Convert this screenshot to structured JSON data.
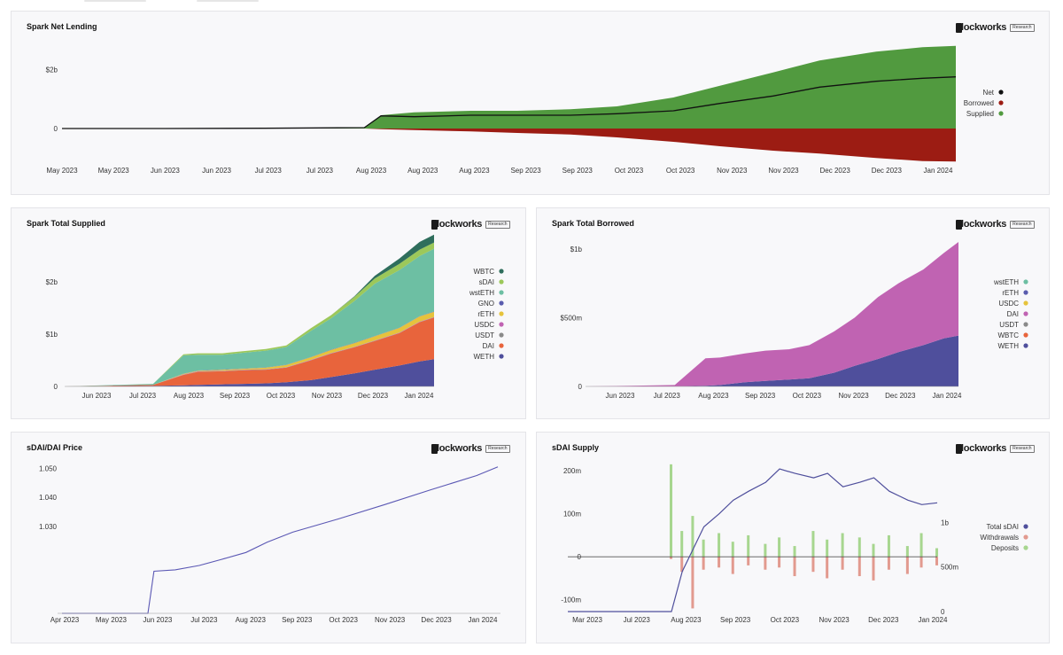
{
  "brand": {
    "logo_label": "lockworks",
    "badge": "Research"
  },
  "colors": {
    "background": "#ffffff",
    "panel": "#f8f8fa",
    "supplied_green": "#519a3f",
    "borrowed_red": "#9c1c13",
    "net_black": "#111111",
    "line_purple": "#5b58b4"
  },
  "charts": {
    "net": {
      "title": "Spark Net Lending",
      "chart_data": {
        "type": "area",
        "x": [
          "2023-05-01",
          "2023-06-01",
          "2023-07-01",
          "2023-07-31",
          "2023-08-05",
          "2023-08-15",
          "2023-09-01",
          "2023-09-15",
          "2023-10-01",
          "2023-10-15",
          "2023-11-01",
          "2023-11-15",
          "2023-12-01",
          "2023-12-15",
          "2024-01-01",
          "2024-01-15",
          "2024-01-25"
        ],
        "series": [
          {
            "name": "Supplied",
            "values": [
              0,
              0,
              0.01,
              0.03,
              0.45,
              0.55,
              0.6,
              0.6,
              0.65,
              0.75,
              1.05,
              1.45,
              1.9,
              2.3,
              2.6,
              2.75,
              2.8
            ]
          },
          {
            "name": "Borrowed",
            "values": [
              0,
              0,
              0,
              0,
              -0.02,
              -0.05,
              -0.1,
              -0.15,
              -0.2,
              -0.3,
              -0.45,
              -0.6,
              -0.75,
              -0.85,
              -1.0,
              -1.1,
              -1.12
            ]
          },
          {
            "name": "Net",
            "values": [
              0,
              0,
              0.01,
              0.03,
              0.43,
              0.4,
              0.45,
              0.45,
              0.45,
              0.5,
              0.6,
              0.85,
              1.1,
              1.4,
              1.6,
              1.7,
              1.75
            ]
          }
        ],
        "ylim": [
          -1.2,
          3
        ],
        "y_ticks": [
          {
            "value": 0,
            "label": "0"
          },
          {
            "value": 2,
            "label": "$2b"
          }
        ],
        "x_tick_labels": [
          "May 2023",
          "May 2023",
          "Jun 2023",
          "Jun 2023",
          "Jul 2023",
          "Jul 2023",
          "Aug 2023",
          "Aug 2023",
          "Aug 2023",
          "Sep 2023",
          "Sep 2023",
          "Oct 2023",
          "Oct 2023",
          "Nov 2023",
          "Nov 2023",
          "Dec 2023",
          "Dec 2023",
          "Jan 2024"
        ],
        "legend": [
          "Net",
          "Borrowed",
          "Supplied"
        ],
        "legend_colors": [
          "#111111",
          "#9c1c13",
          "#519a3f"
        ],
        "legend_position": "right",
        "grid": false
      }
    },
    "supplied": {
      "title": "Spark Total Supplied",
      "chart_data": {
        "type": "area",
        "stacked": true,
        "x": [
          "2023-05-15",
          "2023-06-15",
          "2023-07-15",
          "2023-08-05",
          "2023-08-15",
          "2023-09-01",
          "2023-09-15",
          "2023-10-01",
          "2023-10-15",
          "2023-11-01",
          "2023-11-15",
          "2023-12-01",
          "2023-12-15",
          "2024-01-01",
          "2024-01-15",
          "2024-01-25"
        ],
        "series": [
          {
            "name": "WETH",
            "values": [
              0,
              0.005,
              0.01,
              0.02,
              0.03,
              0.04,
              0.05,
              0.06,
              0.08,
              0.12,
              0.18,
              0.25,
              0.32,
              0.4,
              0.48,
              0.52
            ]
          },
          {
            "name": "DAI",
            "values": [
              0,
              0.01,
              0.02,
              0.2,
              0.25,
              0.25,
              0.26,
              0.26,
              0.28,
              0.38,
              0.45,
              0.5,
              0.55,
              0.62,
              0.75,
              0.8
            ]
          },
          {
            "name": "USDT",
            "values": [
              0,
              0,
              0,
              0.005,
              0.005,
              0.005,
              0.005,
              0.005,
              0.005,
              0.005,
              0.005,
              0.005,
              0.005,
              0.005,
              0.005,
              0.005
            ]
          },
          {
            "name": "USDC",
            "values": [
              0,
              0,
              0,
              0.005,
              0.005,
              0.005,
              0.005,
              0.005,
              0.005,
              0.005,
              0.005,
              0.005,
              0.005,
              0.005,
              0.005,
              0.005
            ]
          },
          {
            "name": "rETH",
            "values": [
              0,
              0,
              0,
              0.01,
              0.01,
              0.02,
              0.02,
              0.03,
              0.04,
              0.05,
              0.06,
              0.07,
              0.08,
              0.09,
              0.1,
              0.1
            ]
          },
          {
            "name": "GNO",
            "values": [
              0,
              0,
              0,
              0.005,
              0.005,
              0.005,
              0.005,
              0.005,
              0.005,
              0.005,
              0.005,
              0.005,
              0.005,
              0.005,
              0.005,
              0.005
            ]
          },
          {
            "name": "wstETH",
            "values": [
              0,
              0.01,
              0.02,
              0.35,
              0.3,
              0.28,
              0.3,
              0.32,
              0.34,
              0.5,
              0.6,
              0.8,
              1.0,
              1.1,
              1.15,
              1.2
            ]
          },
          {
            "name": "sDAI",
            "values": [
              0,
              0,
              0,
              0.02,
              0.03,
              0.03,
              0.03,
              0.03,
              0.03,
              0.05,
              0.06,
              0.08,
              0.1,
              0.12,
              0.12,
              0.12
            ]
          },
          {
            "name": "WBTC",
            "values": [
              0,
              0,
              0,
              0,
              0,
              0,
              0,
              0,
              0,
              0,
              0,
              0.01,
              0.05,
              0.1,
              0.15,
              0.15
            ]
          }
        ],
        "ylim": [
          0,
          2.9
        ],
        "y_ticks": [
          {
            "value": 0,
            "label": "0"
          },
          {
            "value": 1,
            "label": "$1b"
          },
          {
            "value": 2,
            "label": "$2b"
          }
        ],
        "x_tick_labels": [
          "Jun 2023",
          "Jul 2023",
          "Aug 2023",
          "Sep 2023",
          "Oct 2023",
          "Nov 2023",
          "Dec 2023",
          "Jan 2024"
        ],
        "legend": [
          "WBTC",
          "sDAI",
          "wstETH",
          "GNO",
          "rETH",
          "USDC",
          "USDT",
          "DAI",
          "WETH"
        ],
        "legend_colors": [
          "#2f6e5c",
          "#9cc85a",
          "#6dbfa3",
          "#5a5cae",
          "#e6c33c",
          "#c063b2",
          "#8a8a8a",
          "#e8643c",
          "#4f4f9c"
        ],
        "legend_position": "right",
        "grid": false
      }
    },
    "borrowed": {
      "title": "Spark Total Borrowed",
      "chart_data": {
        "type": "area",
        "stacked": true,
        "x": [
          "2023-05-15",
          "2023-06-15",
          "2023-07-15",
          "2023-08-05",
          "2023-08-15",
          "2023-09-01",
          "2023-09-15",
          "2023-10-01",
          "2023-10-15",
          "2023-11-01",
          "2023-11-15",
          "2023-12-01",
          "2023-12-15",
          "2024-01-01",
          "2024-01-15",
          "2024-01-25"
        ],
        "series": [
          {
            "name": "WETH",
            "values": [
              0,
              0,
              0,
              0.005,
              0.01,
              0.03,
              0.04,
              0.05,
              0.06,
              0.1,
              0.15,
              0.2,
              0.25,
              0.3,
              0.35,
              0.37
            ]
          },
          {
            "name": "WBTC",
            "values": [
              0,
              0,
              0,
              0,
              0,
              0,
              0,
              0,
              0,
              0,
              0,
              0,
              0,
              0,
              0,
              0
            ]
          },
          {
            "name": "USDT",
            "values": [
              0,
              0,
              0,
              0,
              0,
              0,
              0,
              0,
              0,
              0,
              0,
              0,
              0,
              0,
              0,
              0
            ]
          },
          {
            "name": "DAI",
            "values": [
              0,
              0.005,
              0.01,
              0.2,
              0.2,
              0.21,
              0.22,
              0.22,
              0.24,
              0.3,
              0.35,
              0.45,
              0.5,
              0.55,
              0.62,
              0.68
            ]
          },
          {
            "name": "USDC",
            "values": [
              0,
              0,
              0,
              0,
              0,
              0,
              0,
              0,
              0,
              0,
              0,
              0,
              0,
              0,
              0,
              0
            ]
          },
          {
            "name": "rETH",
            "values": [
              0,
              0,
              0,
              0,
              0,
              0,
              0,
              0,
              0,
              0,
              0,
              0,
              0,
              0,
              0,
              0
            ]
          },
          {
            "name": "wstETH",
            "values": [
              0,
              0,
              0,
              0,
              0,
              0,
              0,
              0,
              0,
              0,
              0,
              0,
              0,
              0,
              0,
              0
            ]
          }
        ],
        "ylim": [
          0,
          1.05
        ],
        "y_ticks": [
          {
            "value": 0,
            "label": "0"
          },
          {
            "value": 0.5,
            "label": "$500m"
          },
          {
            "value": 1,
            "label": "$1b"
          }
        ],
        "x_tick_labels": [
          "Jun 2023",
          "Jul 2023",
          "Aug 2023",
          "Sep 2023",
          "Oct 2023",
          "Nov 2023",
          "Dec 2023",
          "Jan 2024"
        ],
        "legend": [
          "wstETH",
          "rETH",
          "USDC",
          "DAI",
          "USDT",
          "WBTC",
          "WETH"
        ],
        "legend_colors": [
          "#6dbfa3",
          "#5a5cae",
          "#e6c33c",
          "#c063b2",
          "#8a8a8a",
          "#e8643c",
          "#4f4f9c"
        ],
        "legend_position": "right",
        "grid": false
      }
    },
    "price": {
      "title": "sDAI/DAI Price",
      "chart_data": {
        "type": "line",
        "x": [
          "2023-04-01",
          "2023-05-01",
          "2023-05-28",
          "2023-06-01",
          "2023-06-15",
          "2023-07-01",
          "2023-07-15",
          "2023-08-01",
          "2023-08-15",
          "2023-09-01",
          "2023-10-01",
          "2023-11-01",
          "2023-12-01",
          "2024-01-01",
          "2024-01-15"
        ],
        "series": [
          {
            "name": "",
            "values": [
              1.0,
              1.0,
              1.0,
              1.0145,
              1.015,
              1.0165,
              1.0185,
              1.021,
              1.0245,
              1.028,
              1.0325,
              1.0375,
              1.0425,
              1.0475,
              1.0505
            ]
          }
        ],
        "ylim": [
          1.0,
          1.055
        ],
        "y_ticks": [
          {
            "value": 1.03,
            "label": "1.030"
          },
          {
            "value": 1.04,
            "label": "1.040"
          },
          {
            "value": 1.05,
            "label": "1.050"
          }
        ],
        "x_tick_labels": [
          "Apr 2023",
          "May 2023",
          "Jun 2023",
          "Jul 2023",
          "Aug 2023",
          "Sep 2023",
          "Oct 2023",
          "Nov 2023",
          "Dec 2023",
          "Jan 2024"
        ],
        "grid": false
      }
    },
    "sdai": {
      "title": "sDAI Supply",
      "chart_data": {
        "type": "bar",
        "x": [
          "2023-08-01",
          "2023-08-08",
          "2023-08-15",
          "2023-08-22",
          "2023-09-01",
          "2023-09-10",
          "2023-09-20",
          "2023-10-01",
          "2023-10-10",
          "2023-10-20",
          "2023-11-01",
          "2023-11-10",
          "2023-11-20",
          "2023-12-01",
          "2023-12-10",
          "2023-12-20",
          "2024-01-01",
          "2024-01-10",
          "2024-01-20"
        ],
        "series": [
          {
            "name": "Deposits",
            "values": [
              215,
              60,
              95,
              40,
              55,
              35,
              50,
              30,
              45,
              25,
              60,
              40,
              55,
              45,
              30,
              50,
              25,
              55,
              20
            ]
          },
          {
            "name": "Withdrawals",
            "values": [
              -5,
              -35,
              -120,
              -30,
              -25,
              -40,
              -20,
              -30,
              -25,
              -45,
              -35,
              -50,
              -30,
              -45,
              -55,
              -30,
              -40,
              -25,
              -20
            ]
          },
          {
            "name": "Total sDAI",
            "values": [
              0,
              0.45,
              0.7,
              0.95,
              1.1,
              1.25,
              1.35,
              1.45,
              1.6,
              1.55,
              1.5,
              1.55,
              1.4,
              1.45,
              1.5,
              1.35,
              1.25,
              1.2,
              1.22
            ]
          }
        ],
        "ylim": [
          -115,
          225
        ],
        "y_ticks": [
          {
            "value": -100,
            "label": "-100m"
          },
          {
            "value": 0,
            "label": "0"
          },
          {
            "value": 100,
            "label": "100m"
          },
          {
            "value": 200,
            "label": "200m"
          }
        ],
        "y2lim": [
          0,
          1.7
        ],
        "y2_ticks": [
          {
            "value": 0,
            "label": "0"
          },
          {
            "value": 0.5,
            "label": "500m"
          },
          {
            "value": 1,
            "label": "1b"
          }
        ],
        "x_tick_labels": [
          "Mar 2023",
          "Jul 2023",
          "Aug 2023",
          "Sep 2023",
          "Oct 2023",
          "Nov 2023",
          "Dec 2023",
          "Jan 2024"
        ],
        "legend": [
          "Total sDAI",
          "Withdrawals",
          "Deposits"
        ],
        "legend_colors": [
          "#4f4f9c",
          "#e29a8f",
          "#a7d68f"
        ],
        "legend_position": "right",
        "grid": false
      }
    }
  }
}
